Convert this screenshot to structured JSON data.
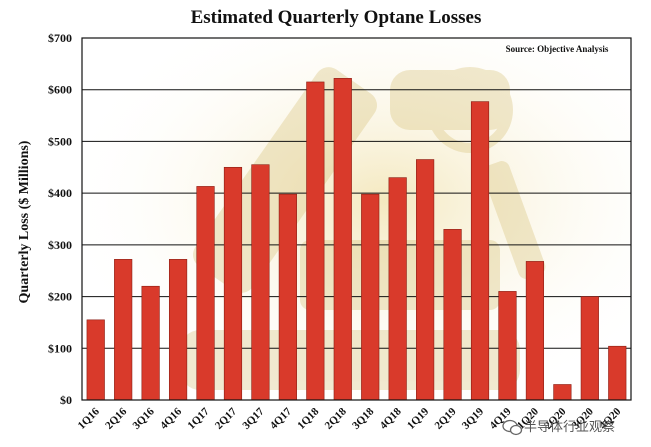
{
  "colors": {
    "bar": "#d93a2b",
    "bar_edge": "#8a1e14",
    "grid": "#111111",
    "background_image_tone": "#d8c27a"
  },
  "watermark": {
    "icon": "wechat-bubble-icon",
    "text": "半导体行业观察"
  },
  "chart_data": {
    "type": "bar",
    "title": "Estimated Quarterly Optane Losses",
    "ylabel": "Quarterly Loss ($ Millions)",
    "xlabel": "",
    "annotation": "Source: Objective Analysis",
    "ylim": [
      0,
      700
    ],
    "yticks": [
      0,
      100,
      200,
      300,
      400,
      500,
      600,
      700
    ],
    "ytick_labels": [
      "$0",
      "$100",
      "$200",
      "$300",
      "$400",
      "$500",
      "$600",
      "$700"
    ],
    "grid": true,
    "categories": [
      "1Q16",
      "2Q16",
      "3Q16",
      "4Q16",
      "1Q17",
      "2Q17",
      "3Q17",
      "4Q17",
      "1Q18",
      "2Q18",
      "3Q18",
      "4Q18",
      "1Q19",
      "2Q19",
      "3Q19",
      "4Q19",
      "1Q20",
      "2Q20",
      "3Q20",
      "4Q20"
    ],
    "values": [
      155,
      272,
      220,
      272,
      413,
      450,
      455,
      398,
      615,
      622,
      398,
      430,
      465,
      330,
      577,
      210,
      268,
      30,
      200,
      104
    ]
  }
}
